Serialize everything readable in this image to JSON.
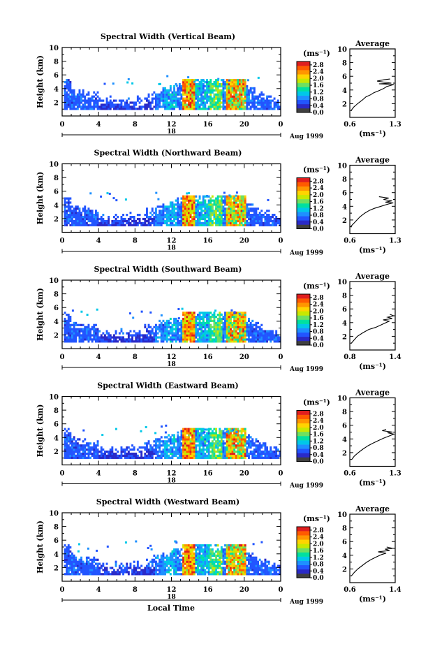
{
  "chart_data": {
    "type": "heatmap",
    "xlabel": "Local Time",
    "date_label": "Aug 1999",
    "day_label": "18",
    "ylabel": "Height (km)",
    "x_ticks": [
      "0",
      "4",
      "8",
      "12",
      "16",
      "20",
      "0"
    ],
    "xlim": [
      0,
      24
    ],
    "ylim": [
      0,
      10
    ],
    "y_ticks": [
      "2",
      "4",
      "6",
      "8",
      "10"
    ],
    "colorbar": {
      "unit_label": "(ms⁻¹)",
      "ticks": [
        "0.0",
        "0.4",
        "0.8",
        "1.2",
        "1.6",
        "2.0",
        "2.4",
        "2.8"
      ],
      "range": [
        0,
        3.0
      ],
      "colors": [
        "#404040",
        "#2a2ac8",
        "#2255ff",
        "#1e90ff",
        "#00c8e8",
        "#00e0a0",
        "#6ee060",
        "#c8e800",
        "#ffd400",
        "#ff9600",
        "#ff5a00",
        "#e01e1e"
      ]
    },
    "panels": [
      {
        "title": "Spectral Width (Vertical Beam)",
        "average": {
          "title": "Average",
          "xlabel": "(ms⁻¹)",
          "x_ticks": [
            "0.6",
            "1.3"
          ],
          "xlim": [
            0.6,
            1.3
          ],
          "profile": [
            [
              1.0,
              0.62
            ],
            [
              1.5,
              0.66
            ],
            [
              2.0,
              0.72
            ],
            [
              2.5,
              0.79
            ],
            [
              3.0,
              0.85
            ],
            [
              3.3,
              0.92
            ],
            [
              3.6,
              0.97
            ],
            [
              3.9,
              1.05
            ],
            [
              4.2,
              1.12
            ],
            [
              4.5,
              1.17
            ],
            [
              4.8,
              1.28
            ],
            [
              4.9,
              1.05
            ],
            [
              5.0,
              1.24
            ],
            [
              5.1,
              1.16
            ],
            [
              5.3,
              1.02
            ],
            [
              5.5,
              1.13
            ],
            [
              5.6,
              1.22
            ]
          ]
        }
      },
      {
        "title": "Spectral Width (Northward Beam)",
        "average": {
          "title": "Average",
          "xlabel": "(ms⁻¹)",
          "x_ticks": [
            "0.6",
            "1.3"
          ],
          "xlim": [
            0.6,
            1.3
          ],
          "profile": [
            [
              1.0,
              0.61
            ],
            [
              1.5,
              0.66
            ],
            [
              2.0,
              0.71
            ],
            [
              2.5,
              0.76
            ],
            [
              3.0,
              0.83
            ],
            [
              3.4,
              0.9
            ],
            [
              3.7,
              0.98
            ],
            [
              4.0,
              1.08
            ],
            [
              4.3,
              1.18
            ],
            [
              4.5,
              1.27
            ],
            [
              4.6,
              1.15
            ],
            [
              4.8,
              1.25
            ],
            [
              5.0,
              1.12
            ],
            [
              5.2,
              1.2
            ],
            [
              5.4,
              1.05
            ]
          ]
        }
      },
      {
        "title": "Spectral Width (Southward Beam)",
        "average": {
          "title": "Average",
          "xlabel": "(ms⁻¹)",
          "x_ticks": [
            "0.8",
            "1.4"
          ],
          "xlim": [
            0.8,
            1.4
          ],
          "profile": [
            [
              1.0,
              0.82
            ],
            [
              1.5,
              0.86
            ],
            [
              2.0,
              0.9
            ],
            [
              2.5,
              0.97
            ],
            [
              3.0,
              1.05
            ],
            [
              3.3,
              1.14
            ],
            [
              3.6,
              1.2
            ],
            [
              3.9,
              1.26
            ],
            [
              4.2,
              1.32
            ],
            [
              4.4,
              1.24
            ],
            [
              4.6,
              1.36
            ],
            [
              4.8,
              1.3
            ],
            [
              5.0,
              1.38
            ],
            [
              5.2,
              1.33
            ]
          ]
        }
      },
      {
        "title": "Spectral Width (Eastward Beam)",
        "average": {
          "title": "Average",
          "xlabel": "(ms⁻¹)",
          "x_ticks": [
            "0.6",
            "1.3"
          ],
          "xlim": [
            0.6,
            1.3
          ],
          "profile": [
            [
              1.0,
              0.63
            ],
            [
              1.5,
              0.67
            ],
            [
              2.0,
              0.73
            ],
            [
              2.5,
              0.8
            ],
            [
              3.0,
              0.88
            ],
            [
              3.4,
              0.96
            ],
            [
              3.8,
              1.05
            ],
            [
              4.1,
              1.12
            ],
            [
              4.4,
              1.2
            ],
            [
              4.7,
              1.28
            ],
            [
              4.9,
              1.18
            ],
            [
              5.0,
              1.26
            ],
            [
              5.2,
              1.1
            ],
            [
              5.4,
              1.16
            ]
          ]
        }
      },
      {
        "title": "Spectral Width (Westward Beam)",
        "average": {
          "title": "Average",
          "xlabel": "(ms⁻¹)",
          "x_ticks": [
            "0.6",
            "1.4"
          ],
          "xlim": [
            0.6,
            1.4
          ],
          "profile": [
            [
              1.0,
              0.63
            ],
            [
              1.5,
              0.68
            ],
            [
              2.0,
              0.74
            ],
            [
              2.5,
              0.82
            ],
            [
              3.0,
              0.9
            ],
            [
              3.4,
              0.98
            ],
            [
              3.8,
              1.08
            ],
            [
              4.1,
              1.16
            ],
            [
              4.3,
              1.24
            ],
            [
              4.5,
              1.1
            ],
            [
              4.7,
              1.3
            ],
            [
              4.9,
              1.22
            ],
            [
              5.0,
              1.36
            ],
            [
              5.2,
              1.25
            ]
          ]
        }
      }
    ]
  }
}
